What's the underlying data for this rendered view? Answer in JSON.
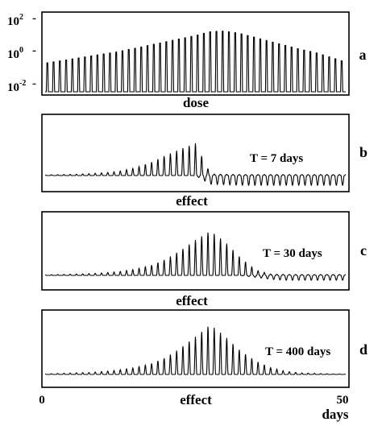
{
  "chart_data": [
    {
      "id": "a",
      "type": "line",
      "panel_letter": "a",
      "title": "dose",
      "y_scale": "log",
      "y_tick_labels": [
        "10^2",
        "10^0",
        "10^-2"
      ],
      "y_ticks": [
        2,
        0,
        -2
      ],
      "ylim_log10": [
        -2.3,
        2.5
      ],
      "x_range": [
        0,
        50
      ],
      "peak_count": 48,
      "series": [
        {
          "x": [
            0,
            2.5,
            5,
            7.5,
            10,
            12.5,
            15,
            17.5,
            20,
            22.5,
            25,
            27.5,
            30,
            32.5,
            35,
            37.5,
            40,
            42.5,
            45,
            47.5,
            50
          ],
          "log10_peak": [
            -0.5,
            -0.35,
            -0.2,
            -0.05,
            0.1,
            0.25,
            0.45,
            0.65,
            0.85,
            1.05,
            1.25,
            1.5,
            1.55,
            1.4,
            1.15,
            0.9,
            0.65,
            0.4,
            0.2,
            -0.1,
            -0.4
          ]
        }
      ]
    },
    {
      "id": "b",
      "type": "line",
      "panel_letter": "b",
      "title": "effect",
      "annotation": "T = 7 days",
      "x_range": [
        0,
        50
      ],
      "peak_count": 48,
      "series": [
        {
          "x": [
            0,
            2.5,
            5,
            7.5,
            10,
            12.5,
            15,
            17.5,
            20,
            22.5,
            25,
            27.5,
            30,
            32.5,
            35,
            37.5,
            40,
            42.5,
            45,
            47.5,
            50
          ],
          "peak_amplitude": [
            0.02,
            0.03,
            0.04,
            0.06,
            0.09,
            0.14,
            0.24,
            0.4,
            0.62,
            0.82,
            1.0,
            0.05,
            0.04,
            0.03,
            0.03,
            0.03,
            0.03,
            0.03,
            0.03,
            0.03,
            0.03
          ],
          "trough_depth": [
            0,
            0,
            0,
            0,
            0,
            0,
            0,
            0,
            0,
            0,
            0,
            0.18,
            0.19,
            0.2,
            0.2,
            0.2,
            0.2,
            0.2,
            0.2,
            0.2,
            0.2
          ]
        }
      ]
    },
    {
      "id": "c",
      "type": "line",
      "panel_letter": "c",
      "title": "effect",
      "annotation": "T = 30 days",
      "x_range": [
        0,
        50
      ],
      "peak_count": 48,
      "series": [
        {
          "x": [
            0,
            2.5,
            5,
            7.5,
            10,
            12.5,
            15,
            17.5,
            20,
            22.5,
            25,
            27.5,
            30,
            32.5,
            35,
            37.5,
            40,
            42.5,
            45,
            47.5,
            50
          ],
          "peak_amplitude": [
            0.01,
            0.02,
            0.03,
            0.04,
            0.06,
            0.09,
            0.14,
            0.22,
            0.36,
            0.56,
            0.8,
            1.0,
            0.75,
            0.4,
            0.12,
            0.03,
            0.02,
            0.02,
            0.02,
            0.02,
            0.02
          ],
          "trough_depth": [
            0,
            0,
            0,
            0,
            0,
            0,
            0,
            0,
            0,
            0,
            0,
            0,
            0,
            0,
            0.04,
            0.08,
            0.1,
            0.1,
            0.1,
            0.1,
            0.1
          ]
        }
      ]
    },
    {
      "id": "d",
      "type": "line",
      "panel_letter": "d",
      "title": "effect",
      "annotation": "T = 400 days",
      "xlabel": "days",
      "x_tick_labels": [
        "0",
        "50"
      ],
      "x_ticks": [
        0,
        50
      ],
      "x_range": [
        0,
        50
      ],
      "peak_count": 48,
      "series": [
        {
          "x": [
            0,
            2.5,
            5,
            7.5,
            10,
            12.5,
            15,
            17.5,
            20,
            22.5,
            25,
            27.5,
            30,
            32.5,
            35,
            37.5,
            40,
            42.5,
            45,
            47.5,
            50
          ],
          "peak_amplitude": [
            0.01,
            0.02,
            0.03,
            0.04,
            0.06,
            0.09,
            0.13,
            0.2,
            0.32,
            0.5,
            0.72,
            0.95,
            0.72,
            0.45,
            0.26,
            0.13,
            0.06,
            0.03,
            0.02,
            0.01,
            0.01
          ],
          "trough_depth": [
            0,
            0,
            0,
            0,
            0,
            0,
            0,
            0,
            0,
            0,
            0,
            0,
            0,
            0,
            0,
            0,
            0,
            0,
            0,
            0,
            0
          ]
        }
      ]
    }
  ]
}
